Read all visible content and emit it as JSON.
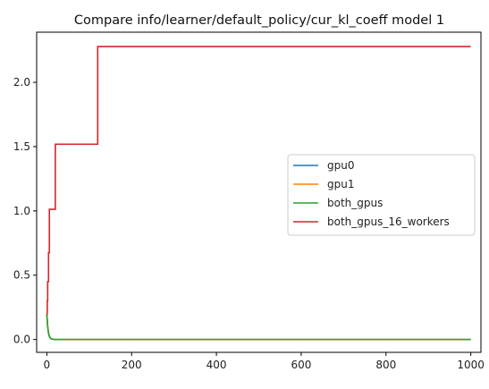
{
  "chart_data": {
    "type": "line",
    "title": "Compare info/learner/default_policy/cur_kl_coeff model 1",
    "xlabel": "",
    "ylabel": "",
    "xlim": [
      -24,
      1024
    ],
    "ylim": [
      -0.1,
      2.39
    ],
    "x_ticks": [
      0,
      200,
      400,
      600,
      800,
      1000
    ],
    "x_tick_labels": [
      "0",
      "200",
      "400",
      "600",
      "800",
      "1000"
    ],
    "y_ticks": [
      0.0,
      0.5,
      1.0,
      1.5,
      2.0
    ],
    "y_tick_labels": [
      "0.0",
      "0.5",
      "1.0",
      "1.5",
      "2.0"
    ],
    "grid": false,
    "legend": "center-right",
    "series": [
      {
        "name": "gpu0",
        "color": "#1f77b4",
        "step": false,
        "points": [
          [
            0,
            0.2
          ],
          [
            2,
            0.1
          ],
          [
            4,
            0.05
          ],
          [
            6,
            0.025
          ],
          [
            8,
            0.0125
          ],
          [
            10,
            0.006
          ],
          [
            14,
            0.002
          ],
          [
            20,
            0.0
          ],
          [
            1000,
            0.0
          ]
        ]
      },
      {
        "name": "gpu1",
        "color": "#ff7f0e",
        "step": false,
        "points": [
          [
            0,
            0.2
          ],
          [
            2,
            0.1
          ],
          [
            4,
            0.05
          ],
          [
            6,
            0.025
          ],
          [
            8,
            0.0125
          ],
          [
            10,
            0.006
          ],
          [
            14,
            0.002
          ],
          [
            20,
            0.0
          ],
          [
            1000,
            0.0
          ]
        ]
      },
      {
        "name": "both_gpus",
        "color": "#2ca02c",
        "step": false,
        "points": [
          [
            0,
            0.2
          ],
          [
            2,
            0.1
          ],
          [
            4,
            0.05
          ],
          [
            6,
            0.025
          ],
          [
            8,
            0.0125
          ],
          [
            10,
            0.006
          ],
          [
            14,
            0.002
          ],
          [
            20,
            0.0
          ],
          [
            1000,
            0.0
          ]
        ]
      },
      {
        "name": "both_gpus_16_workers",
        "color": "#d62728",
        "step": true,
        "points": [
          [
            0,
            0.2
          ],
          [
            1,
            0.3
          ],
          [
            2,
            0.45
          ],
          [
            4,
            0.675
          ],
          [
            6,
            1.0125
          ],
          [
            20,
            1.51875
          ],
          [
            120,
            2.278
          ],
          [
            1000,
            2.278
          ]
        ]
      }
    ]
  }
}
